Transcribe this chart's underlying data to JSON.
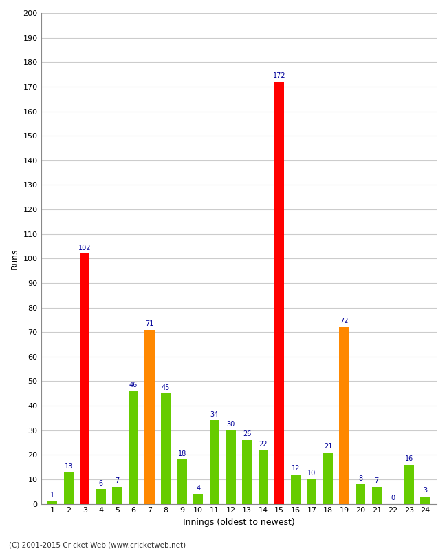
{
  "innings": [
    1,
    2,
    3,
    4,
    5,
    6,
    7,
    8,
    9,
    10,
    11,
    12,
    13,
    14,
    15,
    16,
    17,
    18,
    19,
    20,
    21,
    22,
    23,
    24
  ],
  "runs": [
    1,
    13,
    102,
    6,
    7,
    46,
    71,
    45,
    18,
    4,
    34,
    30,
    26,
    22,
    172,
    12,
    10,
    21,
    72,
    8,
    7,
    0,
    16,
    3
  ],
  "colors": [
    "#66cc00",
    "#66cc00",
    "#ff0000",
    "#66cc00",
    "#66cc00",
    "#66cc00",
    "#ff8800",
    "#66cc00",
    "#66cc00",
    "#66cc00",
    "#66cc00",
    "#66cc00",
    "#66cc00",
    "#66cc00",
    "#ff0000",
    "#66cc00",
    "#66cc00",
    "#66cc00",
    "#ff8800",
    "#66cc00",
    "#66cc00",
    "#66cc00",
    "#66cc00",
    "#66cc00"
  ],
  "xlabel": "Innings (oldest to newest)",
  "ylabel": "Runs",
  "ylim": [
    0,
    200
  ],
  "yticks": [
    0,
    10,
    20,
    30,
    40,
    50,
    60,
    70,
    80,
    90,
    100,
    110,
    120,
    130,
    140,
    150,
    160,
    170,
    180,
    190,
    200
  ],
  "footer": "(C) 2001-2015 Cricket Web (www.cricketweb.net)",
  "background_color": "#ffffff",
  "grid_color": "#cccccc",
  "label_color": "#000099",
  "bar_label_fontsize": 7,
  "axis_label_fontsize": 9,
  "tick_fontsize": 8,
  "bar_width": 0.6
}
